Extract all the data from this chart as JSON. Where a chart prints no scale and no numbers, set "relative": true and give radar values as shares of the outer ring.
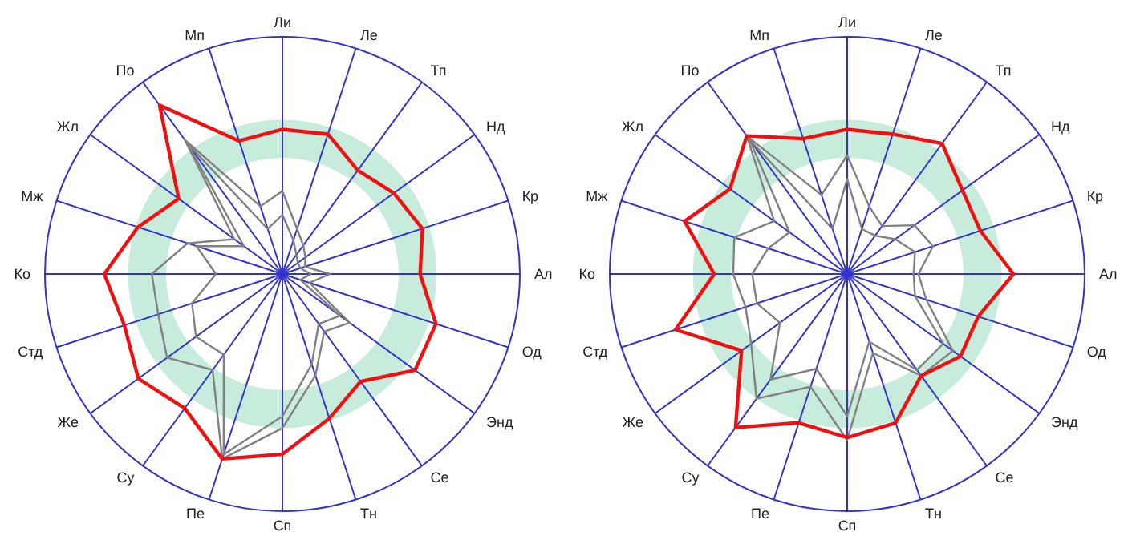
{
  "chart_data": [
    {
      "type": "radar",
      "relative": true,
      "grid": true,
      "categories": [
        "Ли",
        "Ле",
        "Тп",
        "Нд",
        "Кр",
        "Ал",
        "Од",
        "Энд",
        "Се",
        "Тн",
        "Сп",
        "Пе",
        "Су",
        "Же",
        "Стд",
        "Ко",
        "Мж",
        "Жл",
        "По",
        "Мп"
      ],
      "series": [
        {
          "color": "#808080",
          "values": [
            0.35,
            0.2,
            0.15,
            0.12,
            0.1,
            0.2,
            0.12,
            0.35,
            0.3,
            0.45,
            0.65,
            0.82,
            0.5,
            0.6,
            0.55,
            0.55,
            0.42,
            0.25,
            0.7,
            0.3
          ]
        },
        {
          "color": "#808080",
          "values": [
            0.25,
            0.15,
            0.1,
            0.08,
            0.08,
            0.12,
            0.08,
            0.3,
            0.26,
            0.4,
            0.6,
            0.8,
            0.42,
            0.45,
            0.4,
            0.28,
            0.38,
            0.2,
            0.68,
            0.2
          ]
        },
        {
          "color": "#ee1111",
          "values": [
            0.61,
            0.62,
            0.54,
            0.58,
            0.62,
            0.58,
            0.68,
            0.69,
            0.56,
            0.64,
            0.76,
            0.82,
            0.7,
            0.75,
            0.7,
            0.75,
            0.64,
            0.54,
            0.88,
            0.59
          ]
        }
      ]
    },
    {
      "type": "radar",
      "relative": true,
      "grid": true,
      "categories": [
        "Ли",
        "Ле",
        "Тп",
        "Нд",
        "Кр",
        "Ал",
        "Од",
        "Энд",
        "Се",
        "Тн",
        "Сп",
        "Пе",
        "Су",
        "Же",
        "Стд",
        "Ко",
        "Мж",
        "Жл",
        "По",
        "Мп"
      ],
      "series": [
        {
          "color": "#808080",
          "values": [
            0.5,
            0.3,
            0.25,
            0.35,
            0.38,
            0.3,
            0.35,
            0.55,
            0.53,
            0.35,
            0.7,
            0.5,
            0.65,
            0.5,
            0.45,
            0.48,
            0.5,
            0.38,
            0.72,
            0.35
          ]
        },
        {
          "color": "#808080",
          "values": [
            0.4,
            0.2,
            0.2,
            0.25,
            0.3,
            0.28,
            0.3,
            0.5,
            0.5,
            0.3,
            0.6,
            0.42,
            0.55,
            0.35,
            0.4,
            0.4,
            0.35,
            0.3,
            0.7,
            0.2
          ]
        },
        {
          "color": "#ee1111",
          "values": [
            0.61,
            0.62,
            0.68,
            0.6,
            0.59,
            0.7,
            0.58,
            0.59,
            0.53,
            0.66,
            0.69,
            0.66,
            0.8,
            0.55,
            0.76,
            0.56,
            0.72,
            0.61,
            0.72,
            0.6
          ]
        }
      ]
    }
  ]
}
